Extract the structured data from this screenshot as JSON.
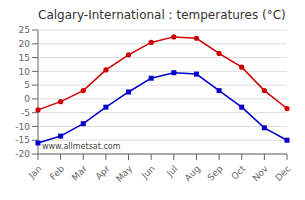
{
  "chart_data": {
    "type": "line",
    "title": "Calgary-International : temperatures (°C)",
    "categories": [
      "Jan",
      "Feb",
      "Mar",
      "Apr",
      "May",
      "Jun",
      "Jul",
      "Aug",
      "Sep",
      "Oct",
      "Nov",
      "Dec"
    ],
    "series": [
      {
        "color": "#cc0000",
        "marker": "circle",
        "values": [
          -4,
          -1,
          3,
          10.5,
          16,
          20.5,
          22.5,
          22,
          16.5,
          11.5,
          3,
          -3.5
        ]
      },
      {
        "color": "#0000cc",
        "marker": "square",
        "values": [
          -16,
          -13.5,
          -9,
          -3,
          2.5,
          7.5,
          9.5,
          9,
          3,
          -3,
          -10.5,
          -15
        ]
      }
    ],
    "ylim": [
      -20,
      25
    ],
    "yticks": [
      -20,
      -15,
      -10,
      -5,
      0,
      5,
      10,
      15,
      20,
      25
    ],
    "grid": true,
    "annotations": [
      "www.allmetsat.com"
    ]
  }
}
